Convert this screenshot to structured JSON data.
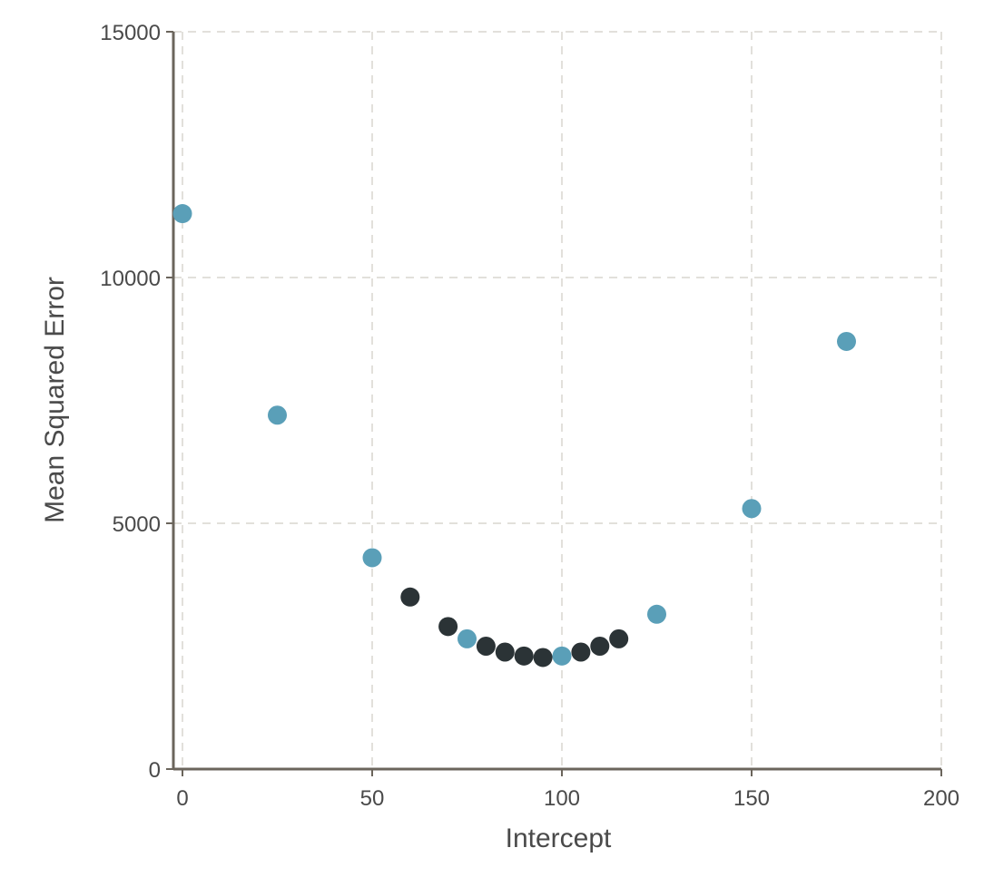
{
  "chart_data": {
    "type": "scatter",
    "title": "",
    "xlabel": "Intercept",
    "ylabel": "Mean Squared Error",
    "xlim": [
      0,
      200
    ],
    "ylim": [
      0,
      15000
    ],
    "x_ticks": [
      0,
      50,
      100,
      150,
      200
    ],
    "y_ticks": [
      0,
      5000,
      10000,
      15000
    ],
    "x_tick_labels": [
      "0",
      "50",
      "100",
      "150",
      "200"
    ],
    "y_tick_labels": [
      "0",
      "5000",
      "10000",
      "15000"
    ],
    "grid": true,
    "legend": "none",
    "series": [
      {
        "color": "#5a9fb8",
        "points": [
          {
            "x": 0,
            "y": 11300
          },
          {
            "x": 25,
            "y": 7200
          },
          {
            "x": 50,
            "y": 4300
          },
          {
            "x": 75,
            "y": 2650
          },
          {
            "x": 100,
            "y": 2300
          },
          {
            "x": 125,
            "y": 3150
          },
          {
            "x": 150,
            "y": 5300
          },
          {
            "x": 175,
            "y": 8700
          }
        ]
      },
      {
        "color": "#2b3336",
        "points": [
          {
            "x": 60,
            "y": 3500
          },
          {
            "x": 70,
            "y": 2900
          },
          {
            "x": 80,
            "y": 2500
          },
          {
            "x": 85,
            "y": 2380
          },
          {
            "x": 90,
            "y": 2300
          },
          {
            "x": 95,
            "y": 2270
          },
          {
            "x": 105,
            "y": 2380
          },
          {
            "x": 110,
            "y": 2500
          },
          {
            "x": 115,
            "y": 2650
          }
        ]
      }
    ]
  }
}
